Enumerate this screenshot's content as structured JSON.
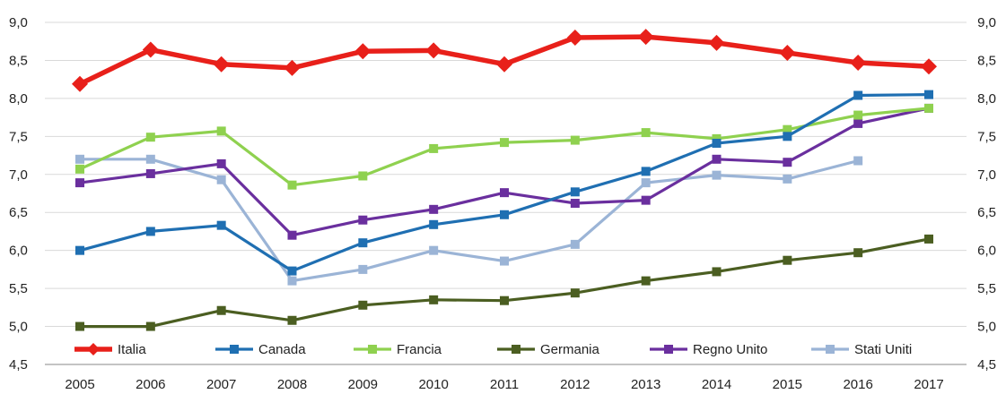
{
  "chart_data": {
    "type": "line",
    "title": "",
    "xlabel": "",
    "ylabel": "",
    "ylim": [
      4.5,
      9.0
    ],
    "y_ticks": [
      "4,5",
      "5,0",
      "5,5",
      "6,0",
      "6,5",
      "7,0",
      "7,5",
      "8,0",
      "8,5",
      "9,0"
    ],
    "y_tick_values": [
      4.5,
      5.0,
      5.5,
      6.0,
      6.5,
      7.0,
      7.5,
      8.0,
      8.5,
      9.0
    ],
    "dual_y_axis": true,
    "grid": true,
    "legend_position": "bottom",
    "categories": [
      "2005",
      "2006",
      "2007",
      "2008",
      "2009",
      "2010",
      "2011",
      "2012",
      "2013",
      "2014",
      "2015",
      "2016",
      "2017"
    ],
    "series": [
      {
        "name": "Italia",
        "color": "#e8201a",
        "marker": "diamond",
        "values": [
          8.19,
          8.64,
          8.45,
          8.4,
          8.62,
          8.63,
          8.45,
          8.8,
          8.81,
          8.73,
          8.6,
          8.47,
          8.42
        ]
      },
      {
        "name": "Canada",
        "color": "#1f6fb2",
        "marker": "square",
        "values": [
          6.0,
          6.25,
          6.33,
          5.73,
          6.1,
          6.34,
          6.47,
          6.77,
          7.04,
          7.41,
          7.5,
          8.04,
          8.05
        ]
      },
      {
        "name": "Francia",
        "color": "#8fd14f",
        "marker": "square",
        "values": [
          7.07,
          7.49,
          7.57,
          6.86,
          6.98,
          7.34,
          7.42,
          7.45,
          7.55,
          7.47,
          7.59,
          7.78,
          7.87
        ]
      },
      {
        "name": "Germania",
        "color": "#4b5e21",
        "marker": "square",
        "values": [
          5.0,
          5.0,
          5.21,
          5.08,
          5.28,
          5.35,
          5.34,
          5.44,
          5.6,
          5.72,
          5.87,
          5.97,
          6.15
        ]
      },
      {
        "name": "Regno Unito",
        "color": "#6a2f9e",
        "marker": "square",
        "values": [
          6.89,
          7.01,
          7.14,
          6.2,
          6.4,
          6.54,
          6.76,
          6.62,
          6.66,
          7.2,
          7.16,
          7.67,
          7.87
        ]
      },
      {
        "name": "Stati Uniti",
        "color": "#9bb4d6",
        "marker": "square",
        "values": [
          7.2,
          7.2,
          6.93,
          5.6,
          5.75,
          6.0,
          5.86,
          6.08,
          6.89,
          6.99,
          6.94,
          7.18,
          null
        ]
      }
    ]
  }
}
